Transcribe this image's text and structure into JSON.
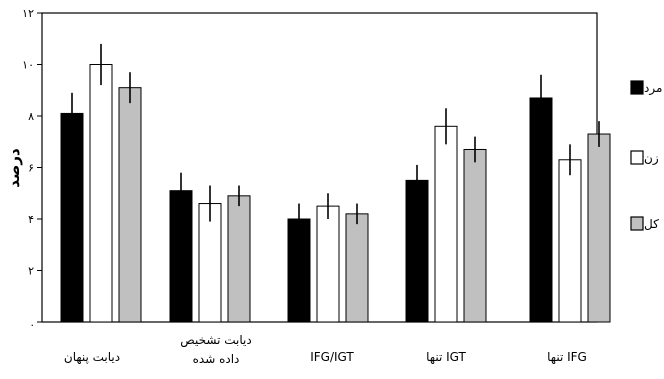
{
  "chart_data": {
    "type": "bar",
    "ylabel": "درصد",
    "ylim": [
      0,
      12
    ],
    "y_ticks": [
      {
        "value": 0,
        "label": "."
      },
      {
        "value": 2,
        "label": "۲"
      },
      {
        "value": 4,
        "label": "۴"
      },
      {
        "value": 6,
        "label": "۶"
      },
      {
        "value": 8,
        "label": "۸"
      },
      {
        "value": 10,
        "label": "۱۰"
      },
      {
        "value": 12,
        "label": "۱۲"
      }
    ],
    "categories": [
      "دیابت پنهان",
      "دیابت تشخیص داده شده",
      "IFG/IGT",
      "تنها IGT",
      "تنها IFG"
    ],
    "category_lines": [
      [
        "دیابت پنهان"
      ],
      [
        "دیابت تشخیص",
        "داده شده"
      ],
      [
        "IFG/IGT"
      ],
      [
        "تنها IGT"
      ],
      [
        "تنها IFG"
      ]
    ],
    "series": [
      {
        "name": "مرد",
        "color": "#000000",
        "values": [
          8.1,
          5.1,
          4.0,
          5.5,
          8.7
        ],
        "errors": [
          0.8,
          0.7,
          0.6,
          0.6,
          0.9
        ]
      },
      {
        "name": "زن",
        "color": "#ffffff",
        "values": [
          10.0,
          4.6,
          4.5,
          7.6,
          6.3
        ],
        "errors": [
          0.8,
          0.7,
          0.5,
          0.7,
          0.6
        ]
      },
      {
        "name": "کل",
        "color": "#c0c0c0",
        "values": [
          9.1,
          4.9,
          4.2,
          6.7,
          7.3
        ],
        "errors": [
          0.6,
          0.4,
          0.4,
          0.5,
          0.5
        ]
      }
    ],
    "legend_position": "right",
    "grid": false
  }
}
